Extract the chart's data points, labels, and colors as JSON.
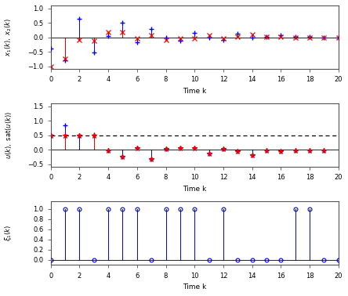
{
  "x1_vals": [
    -0.4,
    -0.8,
    0.63,
    -0.53,
    0.05,
    0.5,
    -0.18,
    0.28,
    0.0,
    -0.13,
    0.15,
    0.0,
    -0.08,
    0.13,
    0.0,
    0.02,
    0.06,
    0.01,
    0.01,
    0.0,
    0.0
  ],
  "x2_vals": [
    -1.0,
    -0.75,
    -0.1,
    -0.13,
    0.18,
    0.18,
    -0.05,
    0.07,
    -0.08,
    -0.05,
    -0.04,
    0.08,
    -0.03,
    0.03,
    0.1,
    0.01,
    0.01,
    0.0,
    0.0,
    0.0,
    0.0
  ],
  "u_vals": [
    0.5,
    0.85,
    0.5,
    0.53,
    -0.03,
    -0.23,
    0.07,
    -0.32,
    0.03,
    0.06,
    0.07,
    -0.14,
    0.04,
    -0.06,
    -0.18,
    -0.02,
    -0.04,
    -0.03,
    -0.03,
    -0.01
  ],
  "sat_vals": [
    0.5,
    0.5,
    0.5,
    0.5,
    -0.03,
    -0.23,
    0.07,
    -0.32,
    0.03,
    0.06,
    0.07,
    -0.14,
    0.04,
    -0.06,
    -0.18,
    -0.02,
    -0.04,
    -0.03,
    -0.03,
    -0.01
  ],
  "xi_vals": [
    0,
    1,
    1,
    0,
    1,
    1,
    1,
    0,
    1,
    1,
    1,
    0,
    1,
    0,
    0,
    0,
    0,
    1,
    1,
    0,
    0
  ],
  "k_range": [
    0,
    1,
    2,
    3,
    4,
    5,
    6,
    7,
    8,
    9,
    10,
    11,
    12,
    13,
    14,
    15,
    16,
    17,
    18,
    19,
    20
  ],
  "k_u": [
    0,
    1,
    2,
    3,
    4,
    5,
    6,
    7,
    8,
    9,
    10,
    11,
    12,
    13,
    14,
    15,
    16,
    17,
    18,
    19
  ],
  "blue": "#0000EE",
  "red": "#EE0000",
  "dashed_color": "#000000",
  "sat_line": 0.5,
  "ylim1": [
    -1.1,
    1.1
  ],
  "ylim2": [
    -0.6,
    1.6
  ],
  "ylim3": [
    -0.1,
    1.15
  ],
  "yticks1": [
    -1.0,
    -0.5,
    0.0,
    0.5,
    1.0
  ],
  "yticks2": [
    -0.5,
    0.0,
    0.5,
    1.0,
    1.5
  ],
  "yticks3": [
    0.0,
    0.2,
    0.4,
    0.6,
    0.8,
    1.0
  ],
  "xticks": [
    0,
    2,
    4,
    6,
    8,
    10,
    12,
    14,
    16,
    18,
    20
  ],
  "xlabel": "Time k",
  "bg_color": "#ffffff",
  "axes_bg": "#ffffff",
  "spine_color": "#555555"
}
